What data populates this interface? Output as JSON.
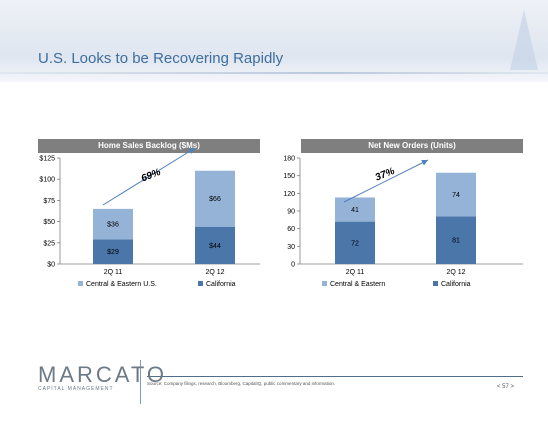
{
  "title": "U.S. Looks to be Recovering Rapidly",
  "logo": {
    "main": "MARCATO",
    "sub": "CAPITAL MANAGEMENT"
  },
  "source": "Source: Company filings, research, Bloomberg, CapitalIQ, public commentary and information.",
  "page_number": "< 57 >",
  "chart_data": [
    {
      "type": "bar",
      "stacked": true,
      "title": "Home Sales Backlog ($Ms)",
      "categories": [
        "2Q 11",
        "2Q 12"
      ],
      "series": [
        {
          "name": "California",
          "values": [
            29,
            44
          ],
          "labels": [
            "$29",
            "$44"
          ],
          "color": "#4a76aa"
        },
        {
          "name": "Central & Eastern U.S.",
          "values": [
            36,
            66
          ],
          "labels": [
            "$36",
            "$66"
          ],
          "color": "#95b3d7"
        }
      ],
      "ylim": [
        0,
        125
      ],
      "yticks": [
        0,
        25,
        50,
        75,
        100,
        125
      ],
      "ytick_labels": [
        "$0",
        "$25",
        "$50",
        "$75",
        "$100",
        "$125"
      ],
      "annotation": "69%",
      "legend_position": "bottom",
      "grid": false
    },
    {
      "type": "bar",
      "stacked": true,
      "title": "Net New Orders (Units)",
      "categories": [
        "2Q 11",
        "2Q 12"
      ],
      "series": [
        {
          "name": "California",
          "values": [
            72,
            81
          ],
          "labels": [
            "72",
            "81"
          ],
          "color": "#4a76aa"
        },
        {
          "name": "Central & Eastern",
          "values": [
            41,
            74
          ],
          "labels": [
            "41",
            "74"
          ],
          "color": "#95b3d7"
        }
      ],
      "ylim": [
        0,
        180
      ],
      "yticks": [
        0,
        30,
        60,
        90,
        120,
        150,
        180
      ],
      "ytick_labels": [
        "0",
        "30",
        "60",
        "90",
        "120",
        "150",
        "180"
      ],
      "annotation": "37%",
      "legend_position": "bottom",
      "grid": false
    }
  ]
}
